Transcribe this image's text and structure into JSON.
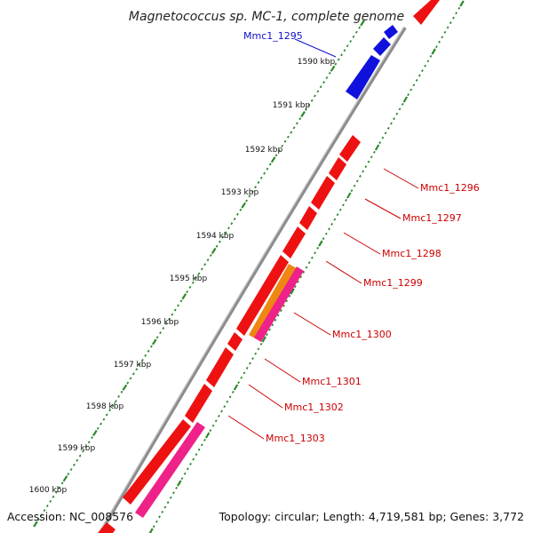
{
  "title": "Magnetococcus sp. MC-1, complete genome",
  "footer": {
    "accession": "Accession: NC_008576",
    "topology": "Topology: circular; Length: 4,719,581 bp; Genes: 3,772"
  },
  "colors": {
    "backbone": "#8c8c8c",
    "tick": "#2a8a2a",
    "forward_gene": "#ee1111",
    "blue_gene": "#1111dd",
    "orange_gene": "#ee8811",
    "magenta_gene": "#ee2288",
    "label_red": "#cc0000",
    "label_blue": "#1111cc"
  },
  "kbp_labels": [
    "1590 kbp",
    "1591 kbp",
    "1592 kbp",
    "1593 kbp",
    "1594 kbp",
    "1595 kbp",
    "1596 kbp",
    "1597 kbp",
    "1598 kbp",
    "1599 kbp",
    "1600 kbp"
  ],
  "gene_labels": [
    {
      "id": "Mmc1_1295",
      "color": "blue"
    },
    {
      "id": "Mmc1_1296",
      "color": "red"
    },
    {
      "id": "Mmc1_1297",
      "color": "red"
    },
    {
      "id": "Mmc1_1298",
      "color": "red"
    },
    {
      "id": "Mmc1_1299",
      "color": "red"
    },
    {
      "id": "Mmc1_1300",
      "color": "red"
    },
    {
      "id": "Mmc1_1301",
      "color": "red"
    },
    {
      "id": "Mmc1_1302",
      "color": "red"
    },
    {
      "id": "Mmc1_1303",
      "color": "red"
    }
  ]
}
